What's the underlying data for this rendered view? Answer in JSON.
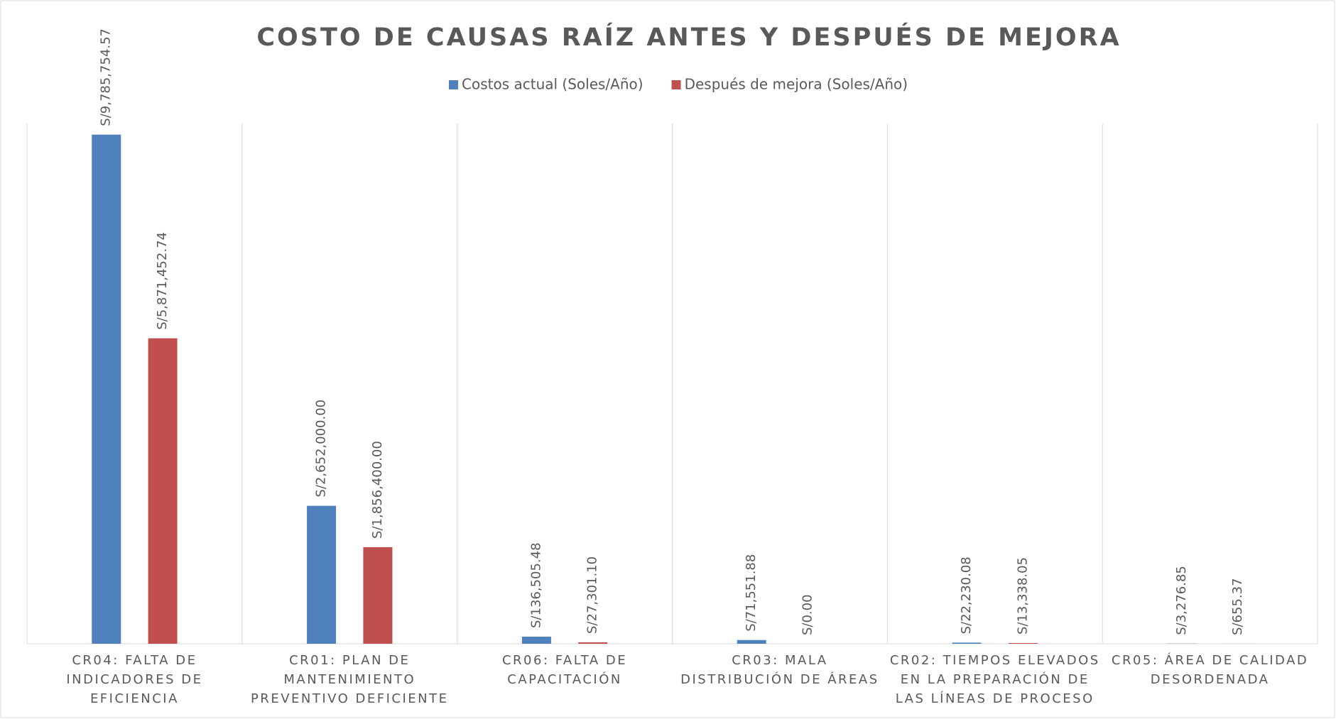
{
  "chart_data": {
    "type": "bar",
    "title": "COSTO DE CAUSAS RAÍZ ANTES Y DESPUÉS DE MEJORA",
    "categories": [
      "CR04: FALTA DE INDICADORES DE EFICIENCIA",
      "CR01: PLAN DE MANTENIMIENTO PREVENTIVO DEFICIENTE",
      "CR06: FALTA DE CAPACITACIÓN",
      "CR03: MALA DISTRIBUCIÓN DE ÁREAS",
      "CR02: TIEMPOS ELEVADOS EN LA PREPARACIÓN DE LAS LÍNEAS DE PROCESO",
      "CR05: ÁREA DE CALIDAD DESORDENADA"
    ],
    "series": [
      {
        "name": "Costos actual (Soles/Año)",
        "color": "#4f81bd",
        "values": [
          9785754.57,
          2652000.0,
          136505.48,
          71551.88,
          22230.08,
          3276.85
        ],
        "value_labels": [
          "S/9,785,754.57",
          "S/2,652,000.00",
          "S/136,505.48",
          "S/71,551.88",
          "S/22,230.08",
          "S/3,276.85"
        ]
      },
      {
        "name": "Después de mejora (Soles/Año)",
        "color": "#c0504d",
        "values": [
          5871452.74,
          1856400.0,
          27301.1,
          0.0,
          13338.05,
          655.37
        ],
        "value_labels": [
          "S/5,871,452.74",
          "S/1,856,400.00",
          "S/27,301.10",
          "S/0.00",
          "S/13,338.05",
          "S/655.37"
        ]
      }
    ],
    "ylim": [
      0,
      10000000
    ],
    "legend": "top",
    "grid": "vertical"
  }
}
